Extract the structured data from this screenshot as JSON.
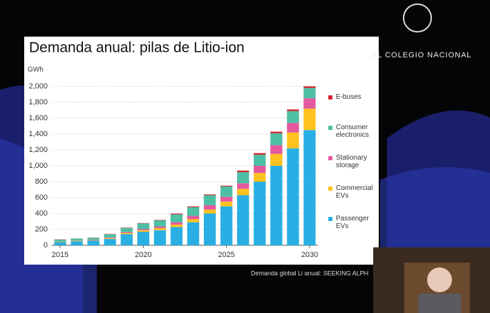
{
  "chart_data": {
    "type": "stacked_bar",
    "title": "Demanda anual: pilas de Litio-ion",
    "y_label": "GWh",
    "categories": [
      "2015",
      null,
      null,
      null,
      null,
      "2020",
      null,
      null,
      null,
      null,
      "2025",
      null,
      null,
      null,
      null,
      "2030"
    ],
    "series": [
      {
        "name": "Passenger EVs",
        "color": "#29afe3",
        "values": [
          40,
          50,
          60,
          80,
          140,
          170,
          190,
          230,
          290,
          400,
          490,
          630,
          800,
          1000,
          1220,
          1450
        ]
      },
      {
        "name": "Commercial EVs",
        "color": "#ffc21f",
        "values": [
          5,
          5,
          5,
          10,
          15,
          20,
          25,
          30,
          40,
          50,
          60,
          80,
          110,
          150,
          200,
          270
        ]
      },
      {
        "name": "Stationary storage",
        "color": "#e4589e",
        "values": [
          2,
          3,
          5,
          8,
          12,
          15,
          20,
          30,
          40,
          55,
          60,
          70,
          90,
          110,
          120,
          130
        ]
      },
      {
        "name": "Consumer electronics",
        "color": "#4dbfa4",
        "values": [
          25,
          25,
          25,
          40,
          50,
          70,
          80,
          100,
          110,
          125,
          130,
          140,
          140,
          150,
          150,
          130
        ]
      },
      {
        "name": "E-buses",
        "color": "#d3222c",
        "values": [
          3,
          2,
          2,
          4,
          5,
          5,
          5,
          10,
          10,
          10,
          10,
          20,
          20,
          20,
          20,
          20
        ]
      }
    ],
    "ylim": [
      0,
      2000
    ],
    "yticks": [
      0,
      200,
      400,
      600,
      800,
      {
        "value": 1000,
        "label": "1,000"
      },
      {
        "value": 1200,
        "label": "1,200"
      },
      {
        "value": 1400,
        "label": "1,400"
      },
      {
        "value": 1600,
        "label": "1,600"
      },
      {
        "value": 1800,
        "label": "1,800"
      },
      {
        "value": 2000,
        "label": "2,000"
      }
    ],
    "grid": true,
    "source": "Demanda global Li anual: SEEKING ALPH"
  },
  "branding": {
    "institution": "EL COLEGIO NACIONAL"
  }
}
